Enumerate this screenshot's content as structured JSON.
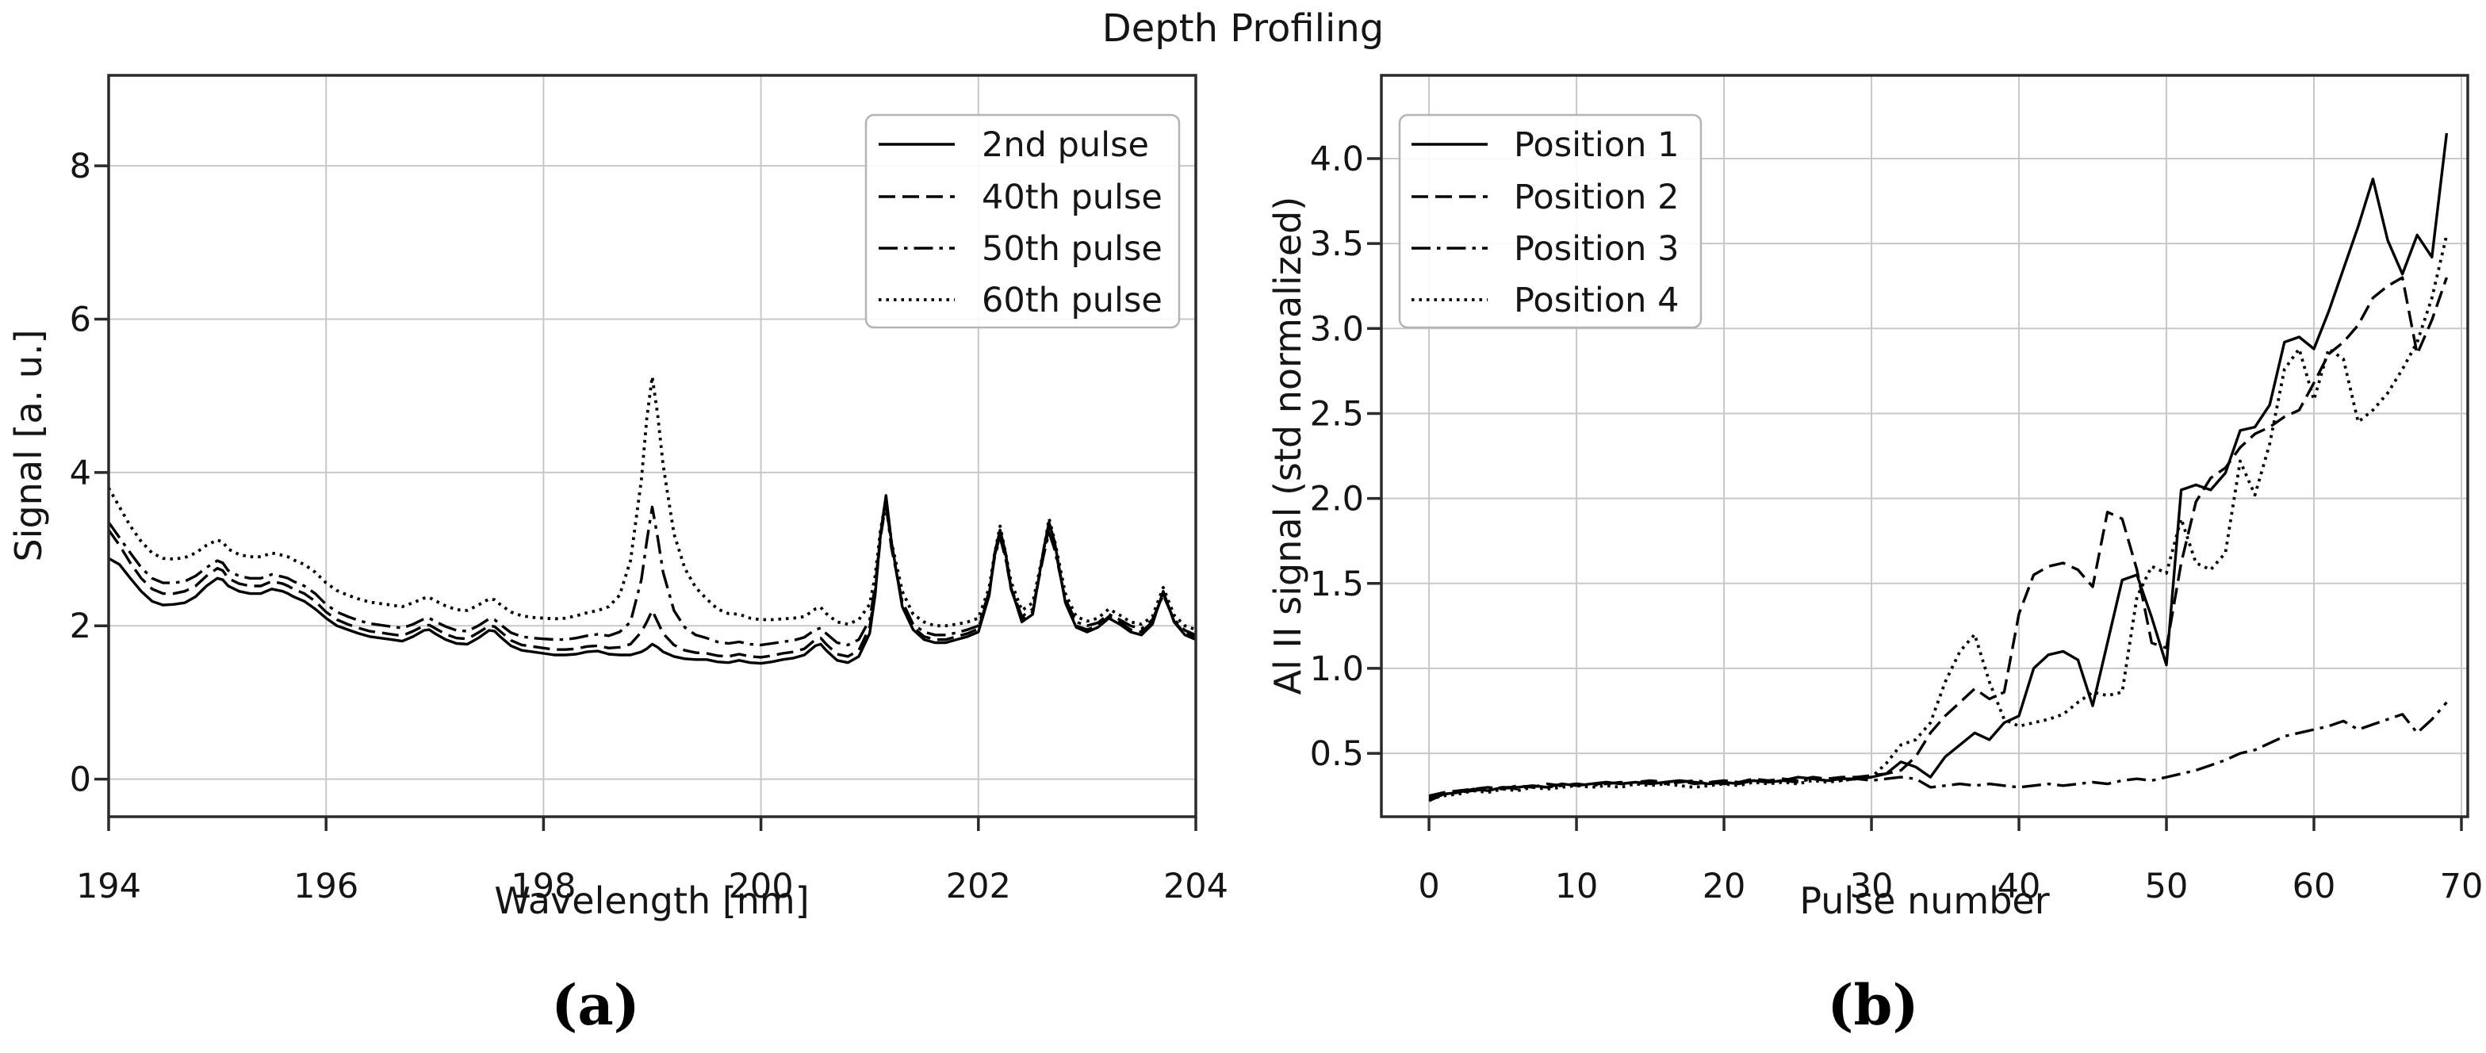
{
  "title": "Depth Profiling",
  "panel_labels": [
    "(a)",
    "(b)"
  ],
  "colors": {
    "line": "#000000",
    "grid": "#c8c8c8",
    "frame": "#2b2b2b",
    "text": "#151515",
    "legend_border": "#b4b4b4",
    "background": "#ffffff"
  },
  "chart_data": [
    {
      "id": "a",
      "type": "line",
      "title": "",
      "xlabel": "Wavelength [nm]",
      "ylabel": "Signal [a. u.]",
      "xlim": [
        194,
        204
      ],
      "ylim": [
        -0.49,
        9.18
      ],
      "xticks": [
        194,
        196,
        198,
        200,
        202,
        204
      ],
      "xticklabels": [
        "194",
        "196",
        "198",
        "200",
        "202",
        "204"
      ],
      "yticks": [
        0,
        2,
        4,
        6,
        8
      ],
      "yticklabels": [
        "0",
        "2",
        "4",
        "6",
        "8"
      ],
      "grid": true,
      "legend_position": "upper right",
      "x": [
        194.0,
        194.1,
        194.2,
        194.3,
        194.4,
        194.5,
        194.6,
        194.7,
        194.8,
        194.9,
        195.0,
        195.05,
        195.1,
        195.2,
        195.3,
        195.4,
        195.5,
        195.6,
        195.65,
        195.7,
        195.8,
        195.9,
        196.0,
        196.1,
        196.2,
        196.3,
        196.4,
        196.5,
        196.6,
        196.7,
        196.8,
        196.9,
        196.95,
        197.0,
        197.1,
        197.2,
        197.3,
        197.4,
        197.5,
        197.55,
        197.6,
        197.7,
        197.8,
        197.9,
        198.0,
        198.1,
        198.2,
        198.3,
        198.4,
        198.5,
        198.6,
        198.7,
        198.8,
        198.9,
        198.95,
        199.0,
        199.05,
        199.1,
        199.2,
        199.3,
        199.4,
        199.5,
        199.6,
        199.7,
        199.8,
        199.9,
        200.0,
        200.1,
        200.2,
        200.3,
        200.4,
        200.5,
        200.55,
        200.6,
        200.7,
        200.8,
        200.9,
        201.0,
        201.05,
        201.1,
        201.15,
        201.2,
        201.3,
        201.4,
        201.5,
        201.6,
        201.7,
        201.8,
        201.9,
        202.0,
        202.1,
        202.15,
        202.2,
        202.25,
        202.3,
        202.4,
        202.5,
        202.6,
        202.65,
        202.7,
        202.8,
        202.9,
        203.0,
        203.1,
        203.2,
        203.3,
        203.4,
        203.5,
        203.6,
        203.7,
        203.8,
        203.9,
        204.0
      ],
      "series": [
        {
          "name": "2nd pulse",
          "linestyle": "solid",
          "values": [
            2.88,
            2.8,
            2.62,
            2.45,
            2.32,
            2.27,
            2.28,
            2.3,
            2.38,
            2.52,
            2.62,
            2.6,
            2.52,
            2.45,
            2.42,
            2.42,
            2.48,
            2.45,
            2.42,
            2.38,
            2.32,
            2.22,
            2.1,
            2.0,
            1.95,
            1.9,
            1.86,
            1.84,
            1.82,
            1.8,
            1.86,
            1.94,
            1.95,
            1.9,
            1.82,
            1.77,
            1.76,
            1.84,
            1.94,
            1.93,
            1.86,
            1.74,
            1.68,
            1.66,
            1.64,
            1.62,
            1.62,
            1.63,
            1.66,
            1.67,
            1.63,
            1.62,
            1.62,
            1.66,
            1.7,
            1.76,
            1.72,
            1.66,
            1.6,
            1.57,
            1.56,
            1.56,
            1.53,
            1.52,
            1.55,
            1.52,
            1.51,
            1.53,
            1.56,
            1.58,
            1.62,
            1.74,
            1.76,
            1.68,
            1.55,
            1.52,
            1.6,
            1.9,
            2.4,
            3.2,
            3.7,
            3.1,
            2.25,
            1.95,
            1.82,
            1.78,
            1.78,
            1.82,
            1.86,
            1.92,
            2.4,
            2.95,
            3.25,
            2.95,
            2.5,
            2.05,
            2.15,
            3.0,
            3.35,
            3.1,
            2.3,
            1.98,
            1.92,
            1.98,
            2.1,
            2.02,
            1.92,
            1.88,
            2.02,
            2.45,
            2.05,
            1.88,
            1.82
          ]
        },
        {
          "name": "40th pulse",
          "linestyle": "dashed",
          "values": [
            3.25,
            3.05,
            2.82,
            2.62,
            2.48,
            2.42,
            2.42,
            2.45,
            2.52,
            2.65,
            2.75,
            2.72,
            2.62,
            2.55,
            2.52,
            2.52,
            2.58,
            2.55,
            2.52,
            2.48,
            2.42,
            2.32,
            2.18,
            2.08,
            2.02,
            1.97,
            1.93,
            1.91,
            1.89,
            1.87,
            1.93,
            2.0,
            2.01,
            1.97,
            1.89,
            1.84,
            1.83,
            1.91,
            2.0,
            1.99,
            1.93,
            1.81,
            1.75,
            1.73,
            1.71,
            1.69,
            1.69,
            1.7,
            1.73,
            1.74,
            1.71,
            1.72,
            1.76,
            1.92,
            2.05,
            2.2,
            2.05,
            1.9,
            1.75,
            1.68,
            1.65,
            1.64,
            1.61,
            1.6,
            1.63,
            1.6,
            1.59,
            1.61,
            1.64,
            1.66,
            1.7,
            1.82,
            1.84,
            1.76,
            1.63,
            1.6,
            1.68,
            1.98,
            2.45,
            3.15,
            3.62,
            3.05,
            2.28,
            1.98,
            1.86,
            1.82,
            1.82,
            1.86,
            1.9,
            1.96,
            2.42,
            2.92,
            3.18,
            2.9,
            2.48,
            2.08,
            2.18,
            2.95,
            3.28,
            3.05,
            2.32,
            2.0,
            1.95,
            2.0,
            2.12,
            2.05,
            1.95,
            1.92,
            2.05,
            2.42,
            2.06,
            1.9,
            1.85
          ]
        },
        {
          "name": "50th pulse",
          "linestyle": "dashdot",
          "values": [
            3.35,
            3.15,
            2.95,
            2.76,
            2.62,
            2.56,
            2.56,
            2.58,
            2.65,
            2.76,
            2.85,
            2.82,
            2.72,
            2.65,
            2.62,
            2.62,
            2.67,
            2.64,
            2.62,
            2.58,
            2.52,
            2.42,
            2.28,
            2.18,
            2.12,
            2.07,
            2.03,
            2.01,
            1.99,
            1.97,
            2.02,
            2.09,
            2.1,
            2.06,
            1.99,
            1.94,
            1.93,
            2.0,
            2.09,
            2.08,
            2.02,
            1.91,
            1.86,
            1.84,
            1.83,
            1.82,
            1.82,
            1.84,
            1.87,
            1.89,
            1.87,
            1.92,
            2.05,
            2.6,
            3.1,
            3.55,
            3.15,
            2.7,
            2.2,
            1.98,
            1.88,
            1.84,
            1.79,
            1.77,
            1.79,
            1.76,
            1.75,
            1.77,
            1.79,
            1.81,
            1.85,
            1.95,
            1.97,
            1.9,
            1.78,
            1.75,
            1.82,
            2.08,
            2.52,
            3.18,
            3.58,
            3.02,
            2.32,
            2.02,
            1.92,
            1.88,
            1.88,
            1.91,
            1.95,
            2.0,
            2.45,
            2.9,
            3.15,
            2.88,
            2.5,
            2.12,
            2.22,
            2.92,
            3.22,
            3.0,
            2.35,
            2.05,
            2.0,
            2.04,
            2.15,
            2.08,
            2.0,
            1.96,
            2.08,
            2.4,
            2.08,
            1.94,
            1.88
          ]
        },
        {
          "name": "60th pulse",
          "linestyle": "dotted",
          "values": [
            3.8,
            3.55,
            3.3,
            3.1,
            2.95,
            2.88,
            2.87,
            2.89,
            2.95,
            3.05,
            3.12,
            3.09,
            3.0,
            2.93,
            2.9,
            2.9,
            2.95,
            2.92,
            2.9,
            2.86,
            2.8,
            2.7,
            2.56,
            2.46,
            2.4,
            2.35,
            2.31,
            2.29,
            2.27,
            2.25,
            2.3,
            2.36,
            2.37,
            2.33,
            2.26,
            2.21,
            2.2,
            2.27,
            2.35,
            2.34,
            2.28,
            2.18,
            2.13,
            2.11,
            2.1,
            2.09,
            2.1,
            2.13,
            2.17,
            2.2,
            2.25,
            2.4,
            2.85,
            3.9,
            4.7,
            5.25,
            4.75,
            4.1,
            3.2,
            2.75,
            2.5,
            2.35,
            2.22,
            2.16,
            2.15,
            2.1,
            2.08,
            2.08,
            2.09,
            2.1,
            2.12,
            2.22,
            2.24,
            2.16,
            2.05,
            2.02,
            2.08,
            2.28,
            2.65,
            3.25,
            3.65,
            3.1,
            2.45,
            2.15,
            2.05,
            2.0,
            2.0,
            2.02,
            2.05,
            2.1,
            2.5,
            2.95,
            3.3,
            2.95,
            2.58,
            2.2,
            2.3,
            2.98,
            3.4,
            3.12,
            2.42,
            2.12,
            2.06,
            2.1,
            2.22,
            2.14,
            2.05,
            2.02,
            2.12,
            2.5,
            2.14,
            2.0,
            1.95
          ]
        }
      ]
    },
    {
      "id": "b",
      "type": "line",
      "title": "",
      "xlabel": "Pulse number",
      "ylabel": "Al II signal (std normalized)",
      "xlim": [
        -3.23,
        70.43
      ],
      "ylim": [
        0.127,
        4.49
      ],
      "xticks": [
        0,
        10,
        20,
        30,
        40,
        50,
        60,
        70
      ],
      "xticklabels": [
        "0",
        "10",
        "20",
        "30",
        "40",
        "50",
        "60",
        "70"
      ],
      "yticks": [
        0.5,
        1.0,
        1.5,
        2.0,
        2.5,
        3.0,
        3.5,
        4.0
      ],
      "yticklabels": [
        "0.5",
        "1.0",
        "1.5",
        "2.0",
        "2.5",
        "3.0",
        "3.5",
        "4.0"
      ],
      "grid": true,
      "legend_position": "upper left",
      "x": [
        0,
        1,
        2,
        3,
        4,
        5,
        6,
        7,
        8,
        9,
        10,
        11,
        12,
        13,
        14,
        15,
        16,
        17,
        18,
        19,
        20,
        21,
        22,
        23,
        24,
        25,
        26,
        27,
        28,
        29,
        30,
        31,
        32,
        33,
        34,
        35,
        36,
        37,
        38,
        39,
        40,
        41,
        42,
        43,
        44,
        45,
        46,
        47,
        48,
        49,
        50,
        51,
        52,
        53,
        54,
        55,
        56,
        57,
        58,
        59,
        60,
        61,
        62,
        63,
        64,
        65,
        66,
        67,
        68,
        69
      ],
      "series": [
        {
          "name": "Position 1",
          "linestyle": "solid",
          "values": [
            0.22,
            0.26,
            0.27,
            0.29,
            0.28,
            0.3,
            0.3,
            0.31,
            0.3,
            0.32,
            0.31,
            0.32,
            0.33,
            0.32,
            0.33,
            0.32,
            0.33,
            0.34,
            0.33,
            0.32,
            0.33,
            0.32,
            0.34,
            0.33,
            0.34,
            0.36,
            0.35,
            0.34,
            0.35,
            0.35,
            0.36,
            0.38,
            0.45,
            0.42,
            0.36,
            0.48,
            0.55,
            0.62,
            0.58,
            0.68,
            0.72,
            1.0,
            1.08,
            1.1,
            1.05,
            0.78,
            1.15,
            1.52,
            1.55,
            1.3,
            1.02,
            2.05,
            2.08,
            2.05,
            2.15,
            2.4,
            2.42,
            2.55,
            2.92,
            2.95,
            2.88,
            3.1,
            3.35,
            3.6,
            3.88,
            3.52,
            3.32,
            3.55,
            3.42,
            4.15
          ]
        },
        {
          "name": "Position 2",
          "linestyle": "dashed",
          "values": [
            0.25,
            0.27,
            0.28,
            0.29,
            0.3,
            0.29,
            0.31,
            0.3,
            0.32,
            0.31,
            0.32,
            0.31,
            0.33,
            0.32,
            0.33,
            0.34,
            0.33,
            0.34,
            0.32,
            0.33,
            0.34,
            0.33,
            0.35,
            0.34,
            0.35,
            0.34,
            0.36,
            0.35,
            0.36,
            0.36,
            0.37,
            0.38,
            0.4,
            0.48,
            0.62,
            0.72,
            0.8,
            0.88,
            0.82,
            0.86,
            1.32,
            1.55,
            1.6,
            1.62,
            1.58,
            1.48,
            1.92,
            1.88,
            1.58,
            1.15,
            1.12,
            1.62,
            1.98,
            2.12,
            2.18,
            2.3,
            2.38,
            2.42,
            2.48,
            2.52,
            2.68,
            2.85,
            2.92,
            3.02,
            3.18,
            3.25,
            3.3,
            2.85,
            3.05,
            3.3
          ]
        },
        {
          "name": "Position 3",
          "linestyle": "dashdot",
          "values": [
            0.24,
            0.26,
            0.27,
            0.28,
            0.29,
            0.3,
            0.29,
            0.31,
            0.3,
            0.31,
            0.32,
            0.31,
            0.32,
            0.33,
            0.32,
            0.33,
            0.32,
            0.33,
            0.34,
            0.33,
            0.32,
            0.33,
            0.34,
            0.33,
            0.34,
            0.33,
            0.35,
            0.34,
            0.34,
            0.35,
            0.34,
            0.35,
            0.36,
            0.35,
            0.3,
            0.31,
            0.32,
            0.31,
            0.32,
            0.31,
            0.3,
            0.31,
            0.32,
            0.31,
            0.32,
            0.33,
            0.32,
            0.34,
            0.35,
            0.34,
            0.36,
            0.38,
            0.4,
            0.43,
            0.46,
            0.5,
            0.52,
            0.56,
            0.6,
            0.62,
            0.64,
            0.66,
            0.69,
            0.64,
            0.67,
            0.7,
            0.73,
            0.62,
            0.7,
            0.8
          ]
        },
        {
          "name": "Position 4",
          "linestyle": "dotted",
          "values": [
            0.23,
            0.25,
            0.26,
            0.28,
            0.27,
            0.29,
            0.28,
            0.3,
            0.29,
            0.3,
            0.31,
            0.3,
            0.31,
            0.3,
            0.32,
            0.31,
            0.32,
            0.31,
            0.3,
            0.31,
            0.32,
            0.31,
            0.33,
            0.32,
            0.33,
            0.32,
            0.34,
            0.33,
            0.34,
            0.35,
            0.36,
            0.44,
            0.55,
            0.58,
            0.68,
            0.92,
            1.1,
            1.2,
            0.92,
            0.7,
            0.66,
            0.68,
            0.7,
            0.73,
            0.8,
            0.86,
            0.84,
            0.86,
            1.42,
            1.6,
            1.56,
            1.88,
            1.62,
            1.58,
            1.68,
            2.22,
            2.02,
            2.32,
            2.76,
            2.88,
            2.58,
            2.88,
            2.82,
            2.45,
            2.52,
            2.62,
            2.76,
            2.92,
            3.18,
            3.55
          ]
        }
      ]
    }
  ]
}
